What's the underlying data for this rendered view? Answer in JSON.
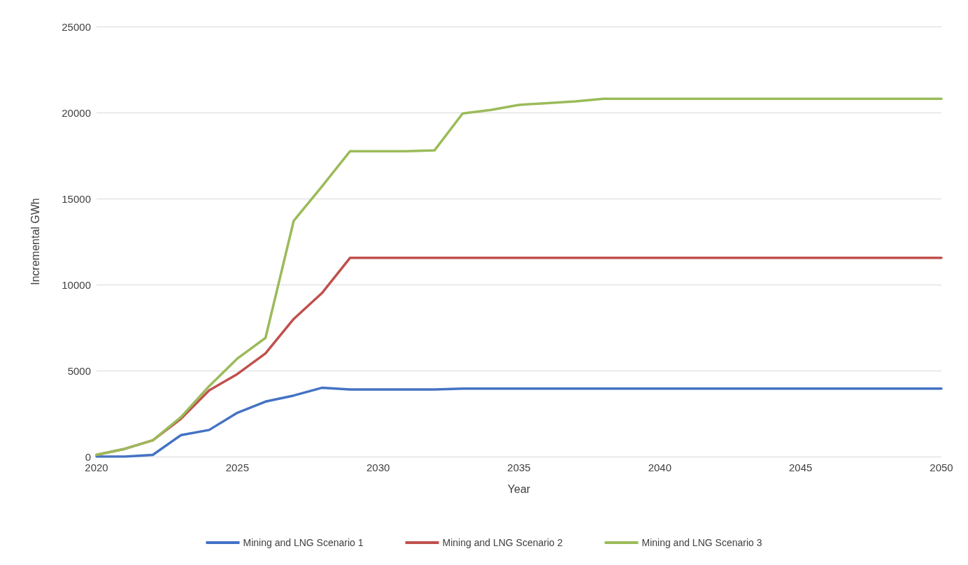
{
  "chart_data": {
    "type": "line",
    "xlabel": "Year",
    "ylabel": "Incremental GWh",
    "x": [
      2020,
      2021,
      2022,
      2023,
      2024,
      2025,
      2026,
      2027,
      2028,
      2029,
      2030,
      2031,
      2032,
      2033,
      2034,
      2035,
      2036,
      2037,
      2038,
      2039,
      2040,
      2041,
      2042,
      2043,
      2044,
      2045,
      2046,
      2047,
      2048,
      2049,
      2050
    ],
    "series": [
      {
        "name": "Mining and LNG Scenario 1",
        "color": "#4472c4",
        "values": [
          0,
          0,
          100,
          1250,
          1550,
          2550,
          3200,
          3550,
          4000,
          3900,
          3900,
          3900,
          3900,
          3950,
          3950,
          3950,
          3950,
          3950,
          3950,
          3950,
          3950,
          3950,
          3950,
          3950,
          3950,
          3950,
          3950,
          3950,
          3950,
          3950,
          3950
        ]
      },
      {
        "name": "Mining and LNG Scenario 2",
        "color": "#c0504d",
        "values": [
          100,
          450,
          950,
          2200,
          3850,
          4800,
          6000,
          8000,
          9500,
          11550,
          11550,
          11550,
          11550,
          11550,
          11550,
          11550,
          11550,
          11550,
          11550,
          11550,
          11550,
          11550,
          11550,
          11550,
          11550,
          11550,
          11550,
          11550,
          11550,
          11550,
          11550
        ]
      },
      {
        "name": "Mining and LNG Scenario 3",
        "color": "#9bbb59",
        "values": [
          100,
          450,
          950,
          2300,
          4100,
          5700,
          6900,
          13700,
          15700,
          17750,
          17750,
          17750,
          17800,
          19950,
          20150,
          20450,
          20550,
          20650,
          20800,
          20800,
          20800,
          20800,
          20800,
          20800,
          20800,
          20800,
          20800,
          20800,
          20800,
          20800,
          20800
        ]
      }
    ],
    "xlim": [
      2020,
      2050
    ],
    "xticks": [
      2020,
      2025,
      2030,
      2035,
      2040,
      2045,
      2050
    ],
    "ylim": [
      0,
      25000
    ],
    "yticks": [
      0,
      5000,
      10000,
      15000,
      20000,
      25000
    ],
    "grid": "y",
    "legend": "bottom",
    "marker": "none",
    "line_style": "solid"
  }
}
